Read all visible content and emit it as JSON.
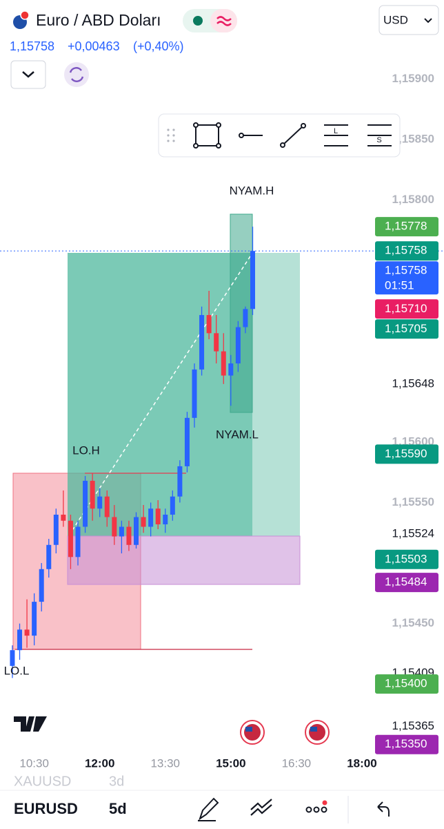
{
  "header": {
    "title": "Euro / ABD Doları",
    "price": "1,15758",
    "change": "+0,00463",
    "change_pct": "(+0,40%)",
    "currency": "USD"
  },
  "chart_data": {
    "type": "candlestick",
    "x": [
      600,
      610,
      620,
      630,
      640,
      650,
      660,
      670,
      680,
      690,
      700,
      710,
      720,
      730,
      740,
      750,
      760,
      770,
      780,
      790,
      800,
      810,
      820,
      830,
      840,
      850,
      860,
      870,
      880,
      890,
      900,
      910,
      920,
      930
    ],
    "open": [
      1.15415,
      1.15428,
      1.15445,
      1.1544,
      1.15468,
      1.15495,
      1.15515,
      1.1554,
      1.15535,
      1.15505,
      1.1553,
      1.15568,
      1.15545,
      1.15555,
      1.15538,
      1.15522,
      1.1553,
      1.15515,
      1.15538,
      1.1553,
      1.15545,
      1.15532,
      1.1554,
      1.15555,
      1.1558,
      1.1562,
      1.1566,
      1.15705,
      1.1569,
      1.15675,
      1.15655,
      1.15665,
      1.15695,
      1.1571
    ],
    "high": [
      1.15432,
      1.1545,
      1.1547,
      1.15475,
      1.155,
      1.1552,
      1.15545,
      1.1556,
      1.1554,
      1.15535,
      1.15572,
      1.15574,
      1.15562,
      1.1556,
      1.15548,
      1.15535,
      1.15535,
      1.15542,
      1.15548,
      1.1555,
      1.15552,
      1.15545,
      1.1556,
      1.15585,
      1.15625,
      1.15665,
      1.15712,
      1.15725,
      1.15705,
      1.1569,
      1.15672,
      1.157,
      1.15712,
      1.15778
    ],
    "low": [
      1.15405,
      1.1542,
      1.1543,
      1.15432,
      1.1546,
      1.15488,
      1.15508,
      1.1553,
      1.15495,
      1.15498,
      1.15525,
      1.15535,
      1.15538,
      1.1553,
      1.15515,
      1.15508,
      1.1551,
      1.15512,
      1.15525,
      1.15522,
      1.15528,
      1.15525,
      1.15535,
      1.1555,
      1.15575,
      1.15612,
      1.15655,
      1.15685,
      1.15665,
      1.15648,
      1.1563,
      1.15658,
      1.1569,
      1.15705
    ],
    "close": [
      1.15428,
      1.15445,
      1.1544,
      1.15468,
      1.15495,
      1.15515,
      1.1554,
      1.15535,
      1.15505,
      1.1553,
      1.15568,
      1.15545,
      1.15555,
      1.15538,
      1.15522,
      1.1553,
      1.15515,
      1.15538,
      1.1553,
      1.15545,
      1.15532,
      1.1554,
      1.15555,
      1.1558,
      1.1562,
      1.1566,
      1.15705,
      1.1569,
      1.15675,
      1.15655,
      1.15665,
      1.15695,
      1.1571,
      1.15758
    ],
    "up_color": "#2962ff",
    "down_color": "#f23645",
    "xlim": [
      583,
      1099
    ],
    "xticks": [
      {
        "value": 630,
        "label": "10:30"
      },
      {
        "value": 720,
        "label": "12:00"
      },
      {
        "value": 810,
        "label": "13:30"
      },
      {
        "value": 900,
        "label": "15:00"
      },
      {
        "value": 990,
        "label": "16:30"
      },
      {
        "value": 1080,
        "label": "18:00"
      }
    ],
    "ylim": [
      1.15343,
      1.15914
    ],
    "yticks": [
      {
        "value": 1.159,
        "label": "1,15900"
      },
      {
        "value": 1.1585,
        "label": "1,15850"
      },
      {
        "value": 1.158,
        "label": "1,15800"
      },
      {
        "value": 1.156,
        "label": "1,15600"
      },
      {
        "value": 1.1555,
        "label": "1,15550"
      },
      {
        "value": 1.1545,
        "label": "1,15450"
      }
    ],
    "price_labels": [
      {
        "value": 1.15648,
        "label": "1,15648"
      },
      {
        "value": 1.15524,
        "label": "1,15524"
      },
      {
        "value": 1.15409,
        "label": "1,15409"
      },
      {
        "value": 1.15365,
        "label": "1,15365"
      }
    ],
    "price_tags": [
      {
        "value": 1.15778,
        "label": "1,15778",
        "color": "#4caf50"
      },
      {
        "value": 1.15758,
        "label": "1,15758",
        "color": "#089981"
      },
      {
        "value": 1.15758,
        "label": "1,15758",
        "sub": "01:51",
        "color": "#2962ff"
      },
      {
        "value": 1.1571,
        "label": "1,15710",
        "color": "#e91e63"
      },
      {
        "value": 1.15705,
        "label": "1,15705",
        "color": "#089981"
      },
      {
        "value": 1.1559,
        "label": "1,15590",
        "color": "#089981"
      },
      {
        "value": 1.15503,
        "label": "1,15503",
        "color": "#089981"
      },
      {
        "value": 1.15484,
        "label": "1,15484",
        "color": "#9c27b0"
      },
      {
        "value": 1.154,
        "label": "1,15400",
        "color": "#4caf50"
      },
      {
        "value": 1.1535,
        "label": "1,15350",
        "color": "#9c27b0"
      }
    ],
    "last_price": 1.15758,
    "annotations": [
      "NYAM.H",
      "NYAM.L",
      "LO.H",
      "LO.L"
    ]
  },
  "footer": {
    "symbol": "EURUSD",
    "range": "5d",
    "prev_symbol": "XAUUSD",
    "prev_range": "3d"
  }
}
